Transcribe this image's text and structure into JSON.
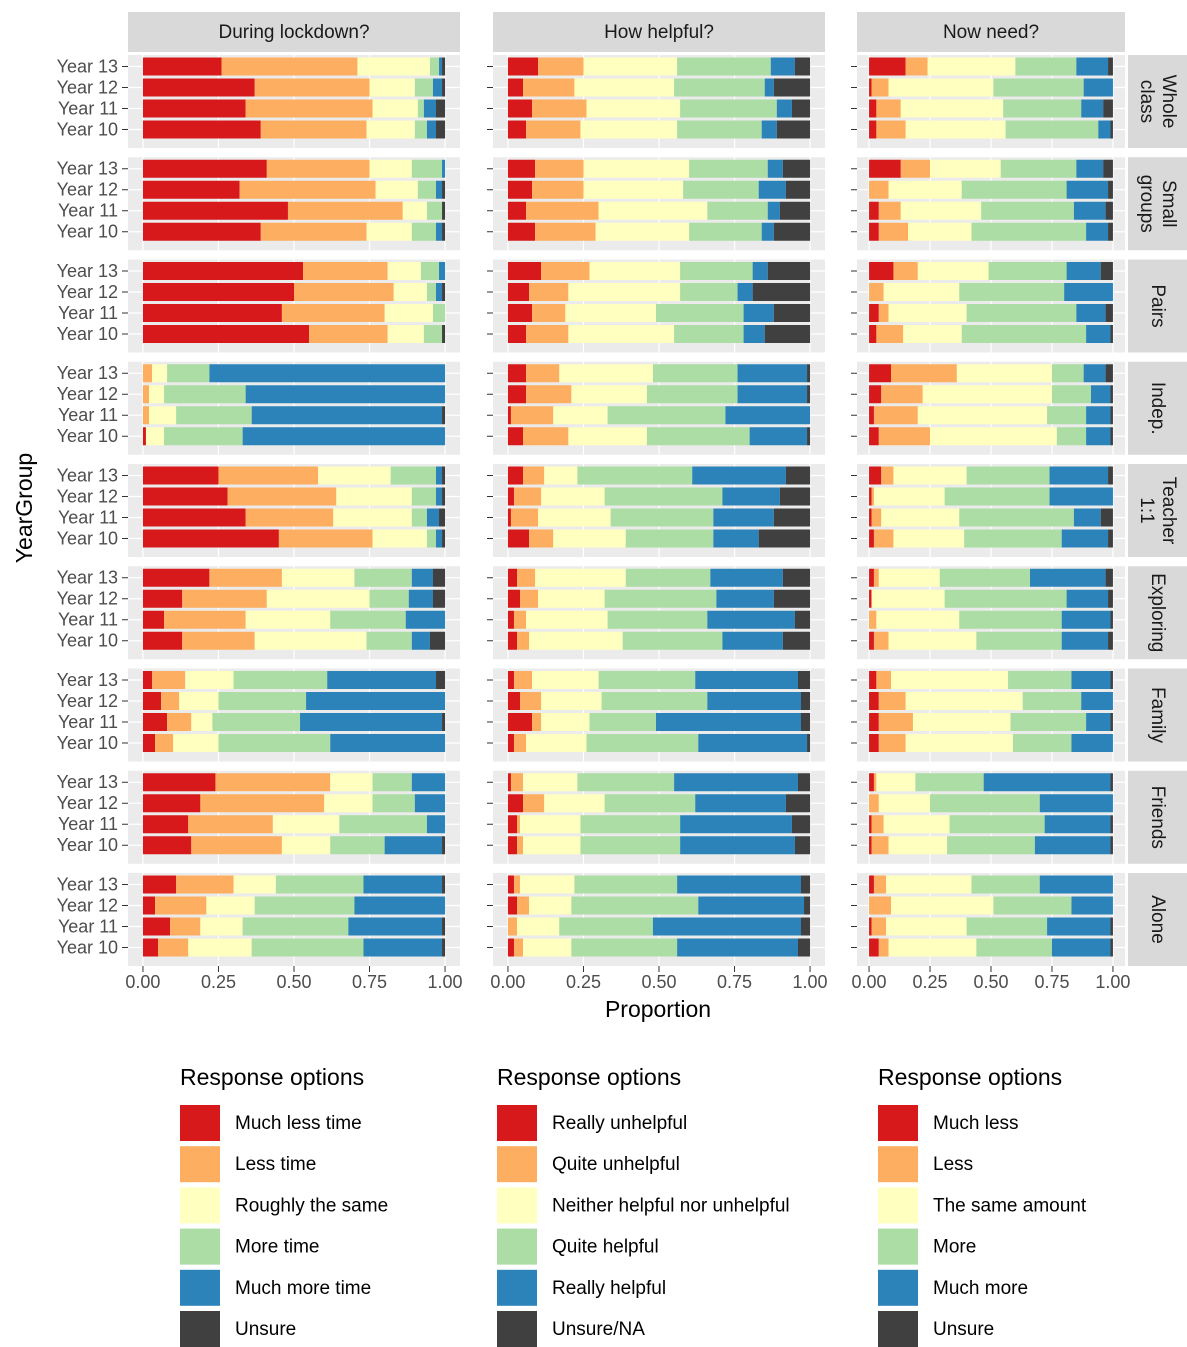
{
  "chart_data": {
    "type": "bar",
    "orientation": "horizontal",
    "stacked": true,
    "x_label": "Proportion",
    "y_label": "YearGroup",
    "xlim": [
      0,
      1
    ],
    "xticks": [
      {
        "value": 0,
        "label": "0.00"
      },
      {
        "value": 0.25,
        "label": "0.25"
      },
      {
        "value": 0.5,
        "label": "0.50"
      },
      {
        "value": 0.75,
        "label": "0.75"
      },
      {
        "value": 1,
        "label": "1.00"
      }
    ],
    "grid": true,
    "categories": [
      "Year 13",
      "Year 12",
      "Year 11",
      "Year 10"
    ],
    "rows": [
      [
        "Whole",
        "class"
      ],
      [
        "Small",
        "groups"
      ],
      [
        "Pairs"
      ],
      [
        "Indep."
      ],
      [
        "Teacher",
        "1:1"
      ],
      [
        "Exploring"
      ],
      [
        "Family"
      ],
      [
        "Friends"
      ],
      [
        "Alone"
      ]
    ],
    "panels": [
      {
        "title": "During lockdown?",
        "legend_title": "Response options",
        "series": [
          {
            "name": "Much less time",
            "color": "#d7191c"
          },
          {
            "name": "Less time",
            "color": "#fdae61"
          },
          {
            "name": "Roughly the same",
            "color": "#ffffbf"
          },
          {
            "name": "More time",
            "color": "#abdda4"
          },
          {
            "name": "Much more time",
            "color": "#2b83ba"
          },
          {
            "name": "Unsure",
            "color": "#404040"
          }
        ],
        "values": [
          [
            [
              0.26,
              0.45,
              0.24,
              0.03,
              0.01,
              0.01
            ],
            [
              0.37,
              0.38,
              0.15,
              0.06,
              0.03,
              0.01
            ],
            [
              0.34,
              0.42,
              0.15,
              0.02,
              0.04,
              0.03
            ],
            [
              0.39,
              0.35,
              0.16,
              0.04,
              0.03,
              0.03
            ]
          ],
          [
            [
              0.41,
              0.34,
              0.14,
              0.1,
              0.01,
              0
            ],
            [
              0.32,
              0.45,
              0.14,
              0.06,
              0.02,
              0.01
            ],
            [
              0.48,
              0.38,
              0.08,
              0.05,
              0,
              0.01
            ],
            [
              0.39,
              0.35,
              0.15,
              0.08,
              0.02,
              0.01
            ]
          ],
          [
            [
              0.53,
              0.28,
              0.11,
              0.06,
              0.02,
              0
            ],
            [
              0.5,
              0.33,
              0.11,
              0.03,
              0.02,
              0.01
            ],
            [
              0.46,
              0.34,
              0.16,
              0.04,
              0,
              0
            ],
            [
              0.55,
              0.26,
              0.12,
              0.06,
              0,
              0.01
            ]
          ],
          [
            [
              0,
              0.03,
              0.05,
              0.14,
              0.78,
              0
            ],
            [
              0,
              0.02,
              0.05,
              0.27,
              0.66,
              0
            ],
            [
              0,
              0.02,
              0.09,
              0.25,
              0.63,
              0.01
            ],
            [
              0.01,
              0,
              0.06,
              0.26,
              0.67,
              0
            ]
          ],
          [
            [
              0.25,
              0.33,
              0.24,
              0.15,
              0.02,
              0.01
            ],
            [
              0.28,
              0.36,
              0.25,
              0.08,
              0.02,
              0.01
            ],
            [
              0.34,
              0.29,
              0.26,
              0.05,
              0.04,
              0.02
            ],
            [
              0.45,
              0.31,
              0.18,
              0.03,
              0.02,
              0.01
            ]
          ],
          [
            [
              0.22,
              0.24,
              0.24,
              0.19,
              0.07,
              0.04
            ],
            [
              0.13,
              0.28,
              0.34,
              0.13,
              0.08,
              0.04
            ],
            [
              0.07,
              0.27,
              0.28,
              0.25,
              0.13,
              0
            ],
            [
              0.13,
              0.24,
              0.37,
              0.15,
              0.06,
              0.05
            ]
          ],
          [
            [
              0.03,
              0.11,
              0.16,
              0.31,
              0.36,
              0.03
            ],
            [
              0.06,
              0.06,
              0.13,
              0.29,
              0.46,
              0
            ],
            [
              0.08,
              0.08,
              0.07,
              0.29,
              0.47,
              0.01
            ],
            [
              0.04,
              0.06,
              0.15,
              0.37,
              0.38,
              0
            ]
          ],
          [
            [
              0.24,
              0.38,
              0.14,
              0.13,
              0.11,
              0
            ],
            [
              0.19,
              0.41,
              0.16,
              0.14,
              0.1,
              0
            ],
            [
              0.15,
              0.28,
              0.22,
              0.29,
              0.06,
              0
            ],
            [
              0.16,
              0.3,
              0.16,
              0.18,
              0.19,
              0.01
            ]
          ],
          [
            [
              0.11,
              0.19,
              0.14,
              0.29,
              0.26,
              0.01
            ],
            [
              0.04,
              0.17,
              0.16,
              0.33,
              0.3,
              0
            ],
            [
              0.09,
              0.1,
              0.14,
              0.35,
              0.31,
              0.01
            ],
            [
              0.05,
              0.1,
              0.21,
              0.37,
              0.26,
              0.01
            ]
          ]
        ]
      },
      {
        "title": "How helpful?",
        "legend_title": "Response options",
        "series": [
          {
            "name": "Really unhelpful",
            "color": "#d7191c"
          },
          {
            "name": "Quite unhelpful",
            "color": "#fdae61"
          },
          {
            "name": "Neither helpful nor unhelpful",
            "color": "#ffffbf"
          },
          {
            "name": "Quite helpful",
            "color": "#abdda4"
          },
          {
            "name": "Really helpful",
            "color": "#2b83ba"
          },
          {
            "name": "Unsure/NA",
            "color": "#404040"
          }
        ],
        "values": [
          [
            [
              0.1,
              0.15,
              0.31,
              0.31,
              0.08,
              0.05
            ],
            [
              0.05,
              0.17,
              0.33,
              0.3,
              0.03,
              0.12
            ],
            [
              0.08,
              0.18,
              0.31,
              0.32,
              0.05,
              0.06
            ],
            [
              0.06,
              0.18,
              0.32,
              0.28,
              0.05,
              0.11
            ]
          ],
          [
            [
              0.09,
              0.16,
              0.35,
              0.26,
              0.05,
              0.09
            ],
            [
              0.08,
              0.17,
              0.33,
              0.25,
              0.09,
              0.08
            ],
            [
              0.06,
              0.24,
              0.36,
              0.2,
              0.04,
              0.1
            ],
            [
              0.09,
              0.2,
              0.31,
              0.24,
              0.04,
              0.12
            ]
          ],
          [
            [
              0.11,
              0.16,
              0.3,
              0.24,
              0.05,
              0.14
            ],
            [
              0.07,
              0.13,
              0.37,
              0.19,
              0.05,
              0.19
            ],
            [
              0.08,
              0.11,
              0.3,
              0.29,
              0.1,
              0.12
            ],
            [
              0.06,
              0.14,
              0.35,
              0.23,
              0.07,
              0.15
            ]
          ],
          [
            [
              0.06,
              0.11,
              0.31,
              0.28,
              0.23,
              0.01
            ],
            [
              0.06,
              0.15,
              0.25,
              0.3,
              0.23,
              0.01
            ],
            [
              0.01,
              0.14,
              0.18,
              0.39,
              0.28,
              0
            ],
            [
              0.05,
              0.15,
              0.26,
              0.34,
              0.19,
              0.01
            ]
          ],
          [
            [
              0.05,
              0.07,
              0.11,
              0.38,
              0.31,
              0.08
            ],
            [
              0.02,
              0.09,
              0.21,
              0.39,
              0.19,
              0.1
            ],
            [
              0.01,
              0.09,
              0.24,
              0.34,
              0.2,
              0.12
            ],
            [
              0.07,
              0.08,
              0.24,
              0.29,
              0.15,
              0.17
            ]
          ],
          [
            [
              0.03,
              0.06,
              0.3,
              0.28,
              0.24,
              0.09
            ],
            [
              0.04,
              0.06,
              0.22,
              0.37,
              0.19,
              0.12
            ],
            [
              0.02,
              0.04,
              0.27,
              0.33,
              0.29,
              0.05
            ],
            [
              0.03,
              0.04,
              0.31,
              0.33,
              0.2,
              0.09
            ]
          ],
          [
            [
              0.02,
              0.06,
              0.22,
              0.32,
              0.34,
              0.04
            ],
            [
              0.04,
              0.07,
              0.2,
              0.35,
              0.31,
              0.03
            ],
            [
              0.08,
              0.03,
              0.16,
              0.22,
              0.48,
              0.03
            ],
            [
              0.02,
              0.04,
              0.2,
              0.37,
              0.36,
              0.01
            ]
          ],
          [
            [
              0.01,
              0.04,
              0.18,
              0.32,
              0.41,
              0.04
            ],
            [
              0.05,
              0.07,
              0.2,
              0.3,
              0.3,
              0.08
            ],
            [
              0.03,
              0.01,
              0.2,
              0.33,
              0.37,
              0.06
            ],
            [
              0.03,
              0.02,
              0.19,
              0.33,
              0.38,
              0.05
            ]
          ],
          [
            [
              0.02,
              0.02,
              0.18,
              0.34,
              0.41,
              0.03
            ],
            [
              0.03,
              0.04,
              0.14,
              0.42,
              0.35,
              0.02
            ],
            [
              0,
              0.03,
              0.14,
              0.31,
              0.49,
              0.03
            ],
            [
              0.02,
              0.03,
              0.16,
              0.35,
              0.4,
              0.04
            ]
          ]
        ]
      },
      {
        "title": "Now need?",
        "legend_title": "Response options",
        "series": [
          {
            "name": "Much less",
            "color": "#d7191c"
          },
          {
            "name": "Less",
            "color": "#fdae61"
          },
          {
            "name": "The same amount",
            "color": "#ffffbf"
          },
          {
            "name": "More",
            "color": "#abdda4"
          },
          {
            "name": "Much more",
            "color": "#2b83ba"
          },
          {
            "name": "Unsure",
            "color": "#404040"
          }
        ],
        "values": [
          [
            [
              0.15,
              0.09,
              0.36,
              0.25,
              0.13,
              0.02
            ],
            [
              0.01,
              0.07,
              0.43,
              0.37,
              0.12,
              0
            ],
            [
              0.03,
              0.1,
              0.42,
              0.32,
              0.09,
              0.04
            ],
            [
              0.03,
              0.12,
              0.41,
              0.38,
              0.05,
              0.01
            ]
          ],
          [
            [
              0.13,
              0.12,
              0.29,
              0.31,
              0.11,
              0.04
            ],
            [
              0,
              0.08,
              0.3,
              0.43,
              0.17,
              0.02
            ],
            [
              0.04,
              0.09,
              0.33,
              0.38,
              0.13,
              0.03
            ],
            [
              0.04,
              0.12,
              0.26,
              0.47,
              0.09,
              0.02
            ]
          ],
          [
            [
              0.1,
              0.1,
              0.29,
              0.32,
              0.14,
              0.05
            ],
            [
              0,
              0.06,
              0.31,
              0.43,
              0.2,
              0
            ],
            [
              0.04,
              0.04,
              0.32,
              0.45,
              0.12,
              0.03
            ],
            [
              0.03,
              0.11,
              0.24,
              0.51,
              0.1,
              0.01
            ]
          ],
          [
            [
              0.09,
              0.27,
              0.39,
              0.13,
              0.09,
              0.03
            ],
            [
              0.05,
              0.17,
              0.53,
              0.16,
              0.08,
              0.01
            ],
            [
              0.02,
              0.18,
              0.53,
              0.16,
              0.1,
              0.01
            ],
            [
              0.04,
              0.21,
              0.52,
              0.12,
              0.1,
              0.01
            ]
          ],
          [
            [
              0.05,
              0.05,
              0.3,
              0.34,
              0.24,
              0.02
            ],
            [
              0.01,
              0.01,
              0.29,
              0.43,
              0.26,
              0
            ],
            [
              0.01,
              0.04,
              0.32,
              0.47,
              0.11,
              0.05
            ],
            [
              0.02,
              0.08,
              0.29,
              0.4,
              0.19,
              0.02
            ]
          ],
          [
            [
              0.02,
              0.02,
              0.25,
              0.37,
              0.31,
              0.03
            ],
            [
              0.01,
              0,
              0.3,
              0.5,
              0.17,
              0.02
            ],
            [
              0,
              0.03,
              0.34,
              0.42,
              0.2,
              0.01
            ],
            [
              0.02,
              0.06,
              0.36,
              0.35,
              0.19,
              0.02
            ]
          ],
          [
            [
              0.03,
              0.06,
              0.48,
              0.26,
              0.16,
              0.01
            ],
            [
              0.04,
              0.11,
              0.48,
              0.24,
              0.13,
              0
            ],
            [
              0.04,
              0.14,
              0.4,
              0.31,
              0.1,
              0.01
            ],
            [
              0.04,
              0.11,
              0.44,
              0.24,
              0.17,
              0
            ]
          ],
          [
            [
              0.02,
              0.01,
              0.16,
              0.28,
              0.52,
              0.01
            ],
            [
              0,
              0.04,
              0.21,
              0.45,
              0.3,
              0
            ],
            [
              0.01,
              0.05,
              0.27,
              0.39,
              0.27,
              0.01
            ],
            [
              0.01,
              0.07,
              0.24,
              0.36,
              0.31,
              0.01
            ]
          ],
          [
            [
              0.02,
              0.05,
              0.35,
              0.28,
              0.3,
              0
            ],
            [
              0,
              0.09,
              0.42,
              0.32,
              0.17,
              0
            ],
            [
              0.01,
              0.06,
              0.33,
              0.33,
              0.26,
              0.01
            ],
            [
              0.04,
              0.04,
              0.36,
              0.31,
              0.24,
              0.01
            ]
          ]
        ]
      }
    ]
  }
}
